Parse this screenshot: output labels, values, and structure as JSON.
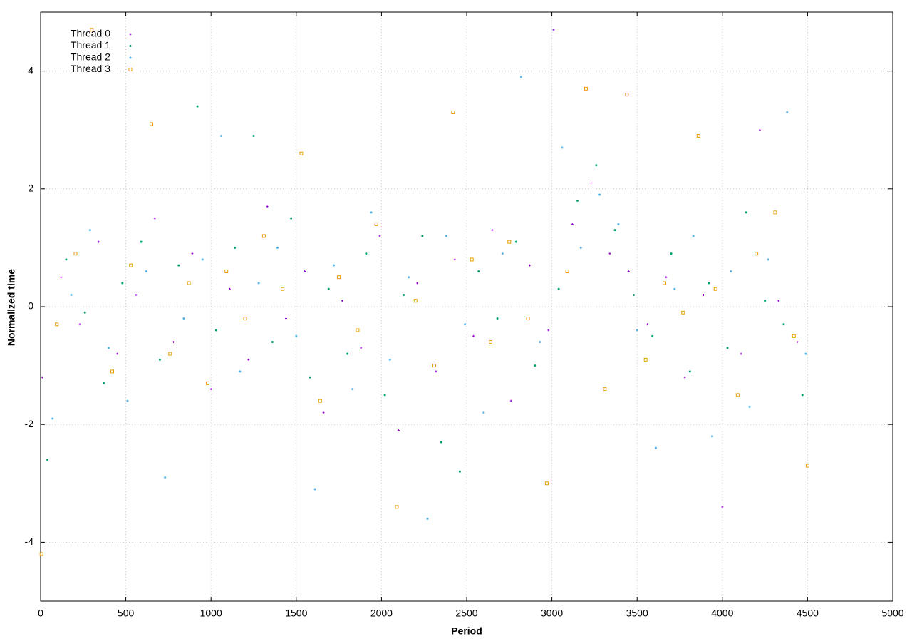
{
  "chart_data": {
    "type": "scatter",
    "xlabel": "Period",
    "ylabel": "Normalized time",
    "xlim": [
      0,
      5000
    ],
    "xticks": [
      0,
      500,
      1000,
      1500,
      2000,
      2500,
      3000,
      3500,
      4000,
      4500,
      5000
    ],
    "ylim": [
      -5,
      5
    ],
    "yticks": [
      -4,
      -2,
      0,
      2,
      4
    ],
    "grid": true,
    "legend": "top-left",
    "series": [
      {
        "name": "Thread 0",
        "color": "#9400d3",
        "marker": "plus",
        "x": [
          10,
          120,
          230,
          340,
          450,
          560,
          670,
          780,
          890,
          1000,
          1110,
          1220,
          1330,
          1440,
          1550,
          1660,
          1770,
          1880,
          1990,
          2100,
          2210,
          2320,
          2430,
          2540,
          2650,
          2760,
          2870,
          2980,
          3010,
          3120,
          3230,
          3340,
          3450,
          3560,
          3670,
          3780,
          3890,
          4000,
          4110,
          4220,
          4330,
          4440
        ],
        "values": [
          -1.2,
          0.5,
          -0.3,
          1.1,
          -0.8,
          0.2,
          1.5,
          -0.6,
          0.9,
          -1.4,
          0.3,
          -0.9,
          1.7,
          -0.2,
          0.6,
          -1.8,
          0.1,
          -0.7,
          1.2,
          -2.1,
          0.4,
          -1.1,
          0.8,
          -0.5,
          1.3,
          -1.6,
          0.7,
          -0.4,
          4.7,
          1.4,
          2.1,
          0.9,
          0.6,
          -0.3,
          0.5,
          -1.2,
          0.2,
          -3.4,
          -0.8,
          3.0,
          0.1,
          -0.6
        ]
      },
      {
        "name": "Thread 1",
        "color": "#009e73",
        "marker": "dot",
        "x": [
          40,
          150,
          260,
          370,
          480,
          590,
          700,
          810,
          920,
          1030,
          1140,
          1250,
          1360,
          1470,
          1580,
          1690,
          1800,
          1910,
          2020,
          2130,
          2240,
          2350,
          2460,
          2570,
          2680,
          2790,
          2900,
          3040,
          3150,
          3260,
          3370,
          3480,
          3590,
          3700,
          3810,
          3920,
          4030,
          4140,
          4250,
          4360,
          4470
        ],
        "values": [
          -2.6,
          0.8,
          -0.1,
          -1.3,
          0.4,
          1.1,
          -0.9,
          0.7,
          3.4,
          -0.4,
          1.0,
          2.9,
          -0.6,
          1.5,
          -1.2,
          0.3,
          -0.8,
          0.9,
          -1.5,
          0.2,
          1.2,
          -2.3,
          -2.8,
          0.6,
          -0.2,
          1.1,
          -1.0,
          0.3,
          1.8,
          2.4,
          1.3,
          0.2,
          -0.5,
          0.9,
          -1.1,
          0.4,
          -0.7,
          1.6,
          0.1,
          -0.3,
          -1.5
        ]
      },
      {
        "name": "Thread 2",
        "color": "#56b4e9",
        "marker": "dot",
        "x": [
          70,
          180,
          290,
          400,
          510,
          620,
          730,
          840,
          950,
          1060,
          1170,
          1280,
          1390,
          1500,
          1610,
          1720,
          1830,
          1940,
          2050,
          2160,
          2270,
          2380,
          2490,
          2600,
          2710,
          2820,
          2930,
          3060,
          3170,
          3280,
          3390,
          3500,
          3610,
          3720,
          3830,
          3940,
          4050,
          4160,
          4270,
          4380,
          4490
        ],
        "values": [
          -1.9,
          0.2,
          1.3,
          -0.7,
          -1.6,
          0.6,
          -2.9,
          -0.2,
          0.8,
          2.9,
          -1.1,
          0.4,
          1.0,
          -0.5,
          -3.1,
          0.7,
          -1.4,
          1.6,
          -0.9,
          0.5,
          -3.6,
          1.2,
          -0.3,
          -1.8,
          0.9,
          3.9,
          -0.6,
          2.7,
          1.0,
          1.9,
          1.4,
          -0.4,
          -2.4,
          0.3,
          1.2,
          -2.2,
          0.6,
          -1.7,
          0.8,
          3.3,
          -0.8
        ]
      },
      {
        "name": "Thread 3",
        "color": "#e69f00",
        "marker": "square",
        "x": [
          5,
          95,
          205,
          300,
          420,
          530,
          650,
          760,
          870,
          980,
          1090,
          1200,
          1310,
          1420,
          1530,
          1640,
          1750,
          1860,
          1970,
          2090,
          2200,
          2310,
          2420,
          2530,
          2640,
          2750,
          2860,
          2970,
          3090,
          3200,
          3310,
          3440,
          3550,
          3660,
          3770,
          3860,
          3960,
          4090,
          4200,
          4310,
          4420,
          4500
        ],
        "values": [
          -4.2,
          -0.3,
          0.9,
          4.7,
          -1.1,
          0.7,
          3.1,
          -0.8,
          0.4,
          -1.3,
          0.6,
          -0.2,
          1.2,
          0.3,
          2.6,
          -1.6,
          0.5,
          -0.4,
          1.4,
          -3.4,
          0.1,
          -1.0,
          3.3,
          0.8,
          -0.6,
          1.1,
          -0.2,
          -3.0,
          0.6,
          3.7,
          -1.4,
          3.6,
          -0.9,
          0.4,
          -0.1,
          2.9,
          0.3,
          -1.5,
          0.9,
          1.6,
          -0.5,
          -2.7
        ]
      }
    ]
  }
}
